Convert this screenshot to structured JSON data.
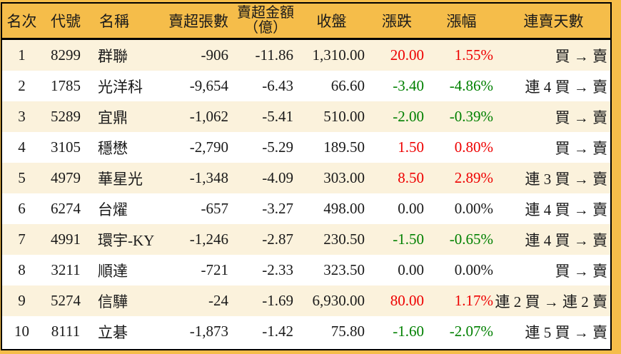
{
  "colors": {
    "page_background": "#F5BD4A",
    "header_bg": "#F5BD4A",
    "row_alt_bg": "#FBF2DC",
    "row_bg": "#FFFFFF",
    "up_red": "#EE0000",
    "down_green": "#008000",
    "text": "#1A1A1A",
    "border": "#000000"
  },
  "table": {
    "columns": [
      {
        "label": "名次"
      },
      {
        "label": "代號"
      },
      {
        "label": "名稱"
      },
      {
        "label": "賣超張數"
      },
      {
        "label": "賣超金額",
        "label2": "（億）"
      },
      {
        "label": "收盤"
      },
      {
        "label": "漲跌"
      },
      {
        "label": "漲幅"
      },
      {
        "label": "連賣天數"
      }
    ],
    "rows": [
      {
        "rank": "1",
        "code": "8299",
        "name": "群聯",
        "sell_volume": "-906",
        "sell_amount": "-11.86",
        "close": "1,310.00",
        "change": "20.00",
        "change_pct": "1.55%",
        "streak": "買 → 賣",
        "trend": "up"
      },
      {
        "rank": "2",
        "code": "1785",
        "name": "光洋科",
        "sell_volume": "-9,654",
        "sell_amount": "-6.43",
        "close": "66.60",
        "change": "-3.40",
        "change_pct": "-4.86%",
        "streak": "連 4 買 → 賣",
        "trend": "down"
      },
      {
        "rank": "3",
        "code": "5289",
        "name": "宜鼎",
        "sell_volume": "-1,062",
        "sell_amount": "-5.41",
        "close": "510.00",
        "change": "-2.00",
        "change_pct": "-0.39%",
        "streak": "買 → 賣",
        "trend": "down"
      },
      {
        "rank": "4",
        "code": "3105",
        "name": "穩懋",
        "sell_volume": "-2,790",
        "sell_amount": "-5.29",
        "close": "189.50",
        "change": "1.50",
        "change_pct": "0.80%",
        "streak": "買 → 賣",
        "trend": "up"
      },
      {
        "rank": "5",
        "code": "4979",
        "name": "華星光",
        "sell_volume": "-1,348",
        "sell_amount": "-4.09",
        "close": "303.00",
        "change": "8.50",
        "change_pct": "2.89%",
        "streak": "連 3 買 → 賣",
        "trend": "up"
      },
      {
        "rank": "6",
        "code": "6274",
        "name": "台燿",
        "sell_volume": "-657",
        "sell_amount": "-3.27",
        "close": "498.00",
        "change": "0.00",
        "change_pct": "0.00%",
        "streak": "連 4 買 → 賣",
        "trend": "flat"
      },
      {
        "rank": "7",
        "code": "4991",
        "name": "環宇-KY",
        "sell_volume": "-1,246",
        "sell_amount": "-2.87",
        "close": "230.50",
        "change": "-1.50",
        "change_pct": "-0.65%",
        "streak": "連 4 買 → 賣",
        "trend": "down"
      },
      {
        "rank": "8",
        "code": "3211",
        "name": "順達",
        "sell_volume": "-721",
        "sell_amount": "-2.33",
        "close": "323.50",
        "change": "0.00",
        "change_pct": "0.00%",
        "streak": "買 → 賣",
        "trend": "flat"
      },
      {
        "rank": "9",
        "code": "5274",
        "name": "信驊",
        "sell_volume": "-24",
        "sell_amount": "-1.69",
        "close": "6,930.00",
        "change": "80.00",
        "change_pct": "1.17%",
        "streak": "連 2 買 → 連 2 賣",
        "trend": "up"
      },
      {
        "rank": "10",
        "code": "8111",
        "name": "立碁",
        "sell_volume": "-1,873",
        "sell_amount": "-1.42",
        "close": "75.80",
        "change": "-1.60",
        "change_pct": "-2.07%",
        "streak": "連 5 買 → 賣",
        "trend": "down"
      }
    ]
  },
  "chart_data": {
    "type": "table",
    "columns": [
      "名次",
      "代號",
      "名稱",
      "賣超張數",
      "賣超金額（億）",
      "收盤",
      "漲跌",
      "漲幅",
      "連賣天數"
    ],
    "rows": [
      [
        1,
        "8299",
        "群聯",
        -906,
        -11.86,
        1310.0,
        20.0,
        "1.55%",
        "買 → 賣"
      ],
      [
        2,
        "1785",
        "光洋科",
        -9654,
        -6.43,
        66.6,
        -3.4,
        "-4.86%",
        "連 4 買 → 賣"
      ],
      [
        3,
        "5289",
        "宜鼎",
        -1062,
        -5.41,
        510.0,
        -2.0,
        "-0.39%",
        "買 → 賣"
      ],
      [
        4,
        "3105",
        "穩懋",
        -2790,
        -5.29,
        189.5,
        1.5,
        "0.80%",
        "買 → 賣"
      ],
      [
        5,
        "4979",
        "華星光",
        -1348,
        -4.09,
        303.0,
        8.5,
        "2.89%",
        "連 3 買 → 賣"
      ],
      [
        6,
        "6274",
        "台燿",
        -657,
        -3.27,
        498.0,
        0.0,
        "0.00%",
        "連 4 買 → 賣"
      ],
      [
        7,
        "4991",
        "環宇-KY",
        -1246,
        -2.87,
        230.5,
        -1.5,
        "-0.65%",
        "連 4 買 → 賣"
      ],
      [
        8,
        "3211",
        "順達",
        -721,
        -2.33,
        323.5,
        0.0,
        "0.00%",
        "買 → 賣"
      ],
      [
        9,
        "5274",
        "信驊",
        -24,
        -1.69,
        6930.0,
        80.0,
        "1.17%",
        "連 2 買 → 連 2 賣"
      ],
      [
        10,
        "8111",
        "立碁",
        -1873,
        -1.42,
        75.8,
        -1.6,
        "-2.07%",
        "連 5 買 → 賣"
      ]
    ],
    "legend": "red = up, green = down (Taiwan market convention)"
  }
}
